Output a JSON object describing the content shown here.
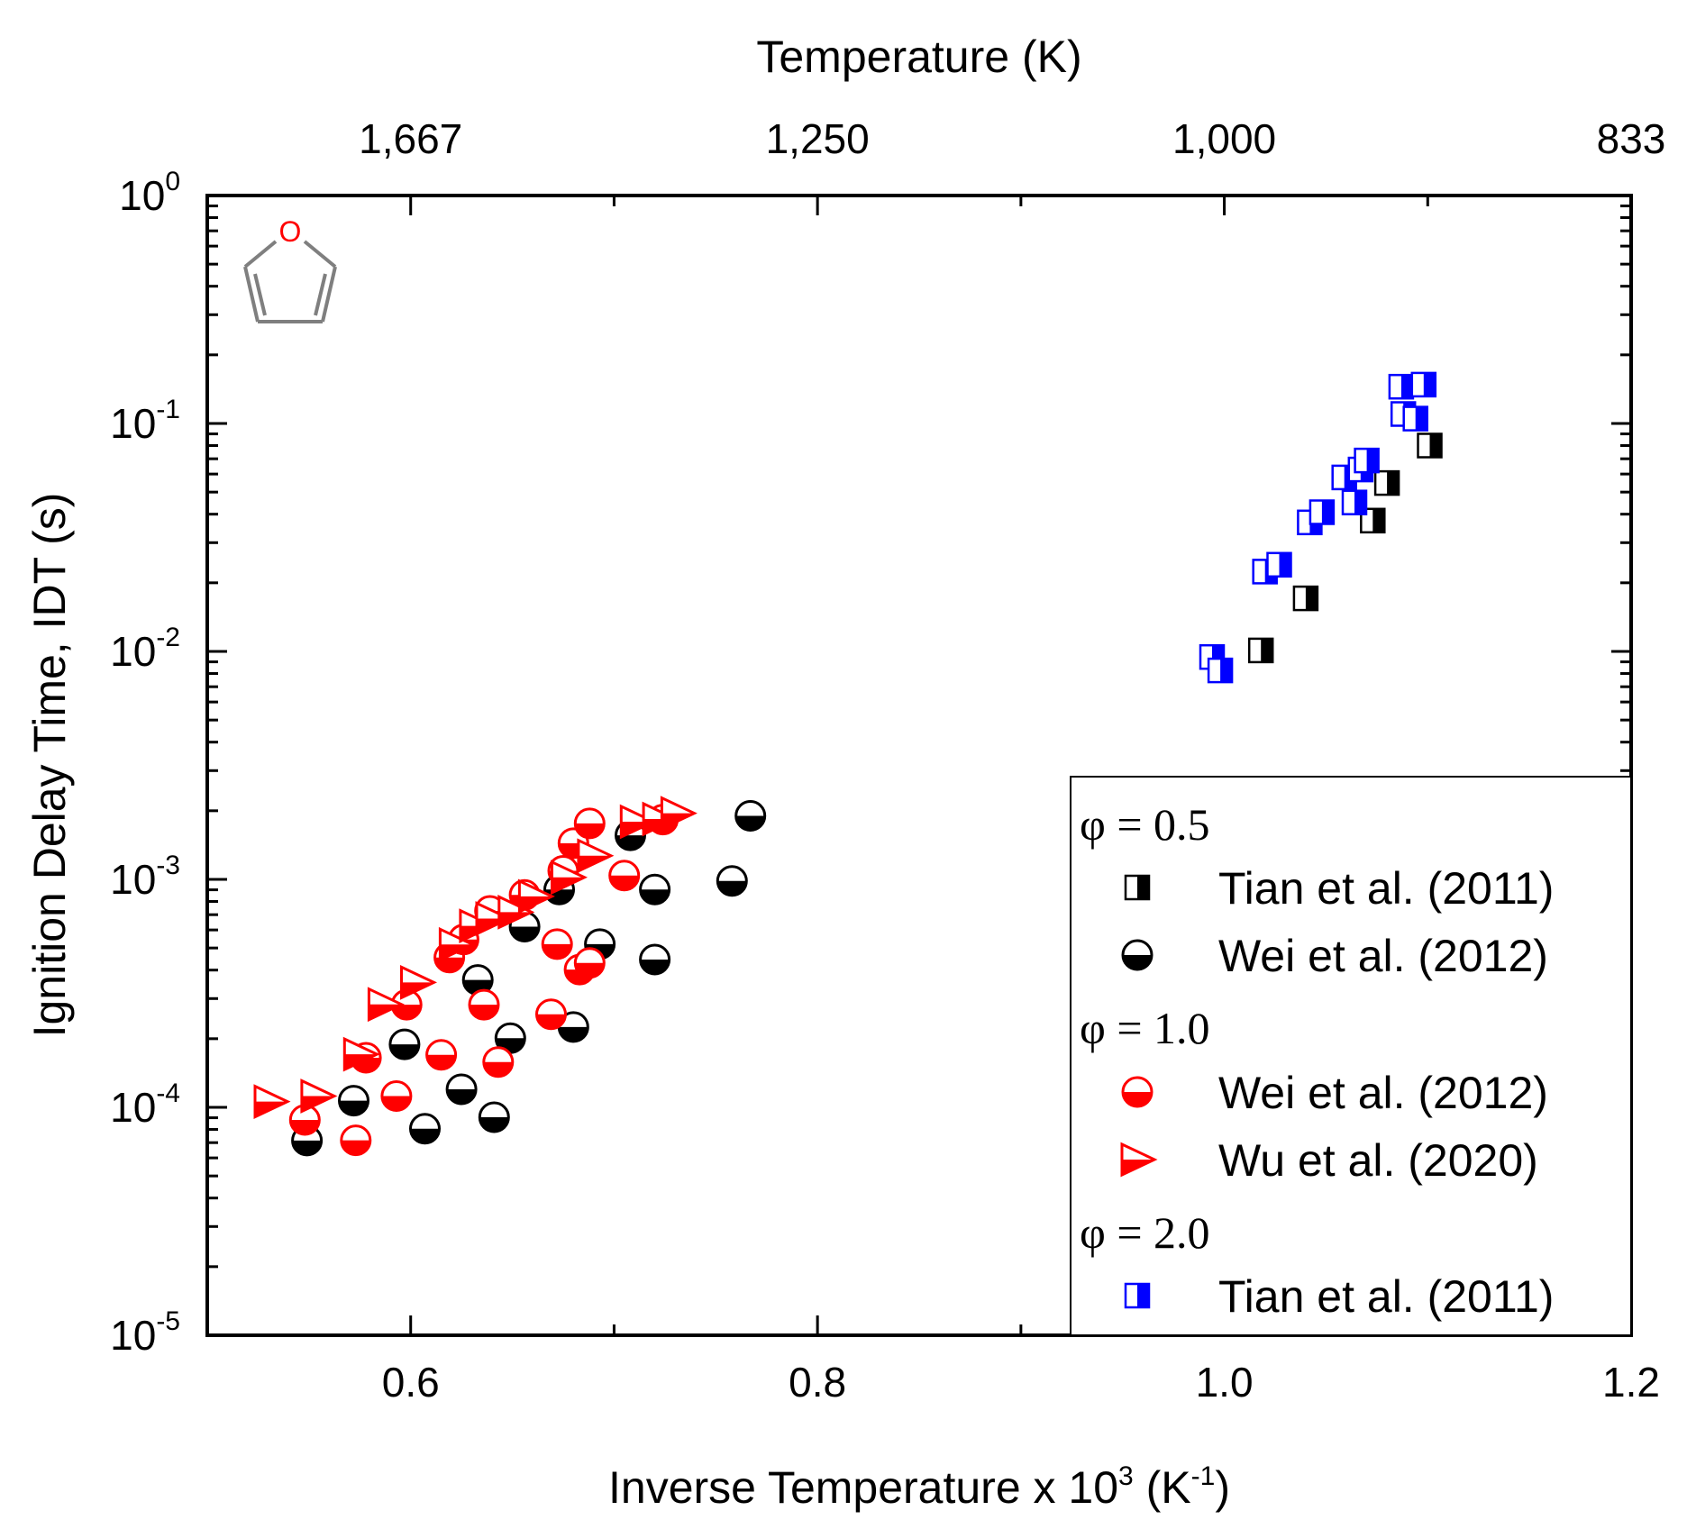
{
  "chart_data": {
    "type": "scatter",
    "x_axis": {
      "label": "Inverse Temperature x 10",
      "label_sup": "3",
      "label_unit_open": " (K",
      "label_unit_sup": "-1",
      "label_unit_close": ")",
      "range": [
        0.5,
        1.2
      ],
      "ticks": [
        0.6,
        0.8,
        1.0,
        1.2
      ],
      "tick_labels": [
        "0.6",
        "0.8",
        "1.0",
        "1.2"
      ]
    },
    "x_top_axis": {
      "label": "Temperature (K)",
      "tick_values_inverse": [
        0.6,
        0.8,
        1.0,
        1.2
      ],
      "tick_labels": [
        "1,667",
        "1,250",
        "1,000",
        "833"
      ]
    },
    "y_axis": {
      "label": "Ignition Delay Time, IDT (s)",
      "scale": "log",
      "range": [
        1e-05,
        1
      ],
      "ticks": [
        {
          "value": 1e-05,
          "base": "10",
          "exp": "-5"
        },
        {
          "value": 0.0001,
          "base": "10",
          "exp": "-4"
        },
        {
          "value": 0.001,
          "base": "10",
          "exp": "-3"
        },
        {
          "value": 0.01,
          "base": "10",
          "exp": "-2"
        },
        {
          "value": 0.1,
          "base": "10",
          "exp": "-1"
        },
        {
          "value": 1,
          "base": "10",
          "exp": "0"
        }
      ]
    },
    "annotation": {
      "molecule": "furan",
      "atom_label": "O"
    },
    "legend": {
      "position": "bottom-right",
      "groups": [
        {
          "heading": "φ = 0.5",
          "items": [
            {
              "label": "Tian et al. (2011)",
              "series": "tian_05"
            },
            {
              "label": "Wei et al. (2012)",
              "series": "wei_05"
            }
          ]
        },
        {
          "heading": "φ = 1.0",
          "items": [
            {
              "label": "Wei et al. (2012)",
              "series": "wei_10"
            },
            {
              "label": "Wu et al. (2020)",
              "series": "wu_10"
            }
          ]
        },
        {
          "heading": "φ = 2.0",
          "items": [
            {
              "label": "Tian et al. (2011)",
              "series": "tian_20"
            }
          ]
        }
      ]
    },
    "series": [
      {
        "id": "tian_05",
        "name": "Tian et al. (2011)",
        "phi": "0.5",
        "marker": "square-half-right",
        "color": "#000000",
        "points": [
          [
            1.018,
            0.0101
          ],
          [
            1.04,
            0.0171
          ],
          [
            1.073,
            0.0375
          ],
          [
            1.08,
            0.0548
          ],
          [
            1.101,
            0.08
          ]
        ]
      },
      {
        "id": "wei_05",
        "name": "Wei et al. (2012)",
        "phi": "0.5",
        "marker": "circle-half-bottom",
        "color": "#000000",
        "points": [
          [
            0.549,
            7.15e-05
          ],
          [
            0.572,
            0.000107
          ],
          [
            0.597,
            0.000189
          ],
          [
            0.607,
            8.05e-05
          ],
          [
            0.625,
            0.00012
          ],
          [
            0.633,
            0.000362
          ],
          [
            0.641,
            9.05e-05
          ],
          [
            0.649,
            0.000201
          ],
          [
            0.656,
            0.00062
          ],
          [
            0.673,
            0.000902
          ],
          [
            0.68,
            0.000225
          ],
          [
            0.693,
            0.00052
          ],
          [
            0.708,
            0.00156
          ],
          [
            0.72,
            0.000902
          ],
          [
            0.72,
            0.000445
          ],
          [
            0.758,
            0.000985
          ],
          [
            0.767,
            0.0019
          ]
        ]
      },
      {
        "id": "wei_10",
        "name": "Wei et al. (2012)",
        "phi": "1.0",
        "marker": "circle-half-bottom",
        "color": "#ff0000",
        "points": [
          [
            0.548,
            8.8e-05
          ],
          [
            0.573,
            7.17e-05
          ],
          [
            0.578,
            0.000165
          ],
          [
            0.593,
            0.000112
          ],
          [
            0.598,
            0.000282
          ],
          [
            0.615,
            0.00017
          ],
          [
            0.619,
            0.000454
          ],
          [
            0.626,
            0.000545
          ],
          [
            0.636,
            0.000282
          ],
          [
            0.639,
            0.000727
          ],
          [
            0.643,
            0.000158
          ],
          [
            0.656,
            0.000855
          ],
          [
            0.669,
            0.000256
          ],
          [
            0.672,
            0.00052
          ],
          [
            0.675,
            0.00109
          ],
          [
            0.68,
            0.00144
          ],
          [
            0.683,
            0.000402
          ],
          [
            0.688,
            0.00043
          ],
          [
            0.688,
            0.00176
          ],
          [
            0.705,
            0.00104
          ],
          [
            0.724,
            0.00183
          ]
        ]
      },
      {
        "id": "wu_10",
        "name": "Wu et al. (2020)",
        "phi": "1.0",
        "marker": "triangle-right",
        "color": "#ff0000",
        "points": [
          [
            0.531,
            0.000106
          ],
          [
            0.554,
            0.000112
          ],
          [
            0.575,
            0.000171
          ],
          [
            0.587,
            0.000283
          ],
          [
            0.603,
            0.000353
          ],
          [
            0.622,
            0.000518
          ],
          [
            0.632,
            0.000625
          ],
          [
            0.64,
            0.000673
          ],
          [
            0.651,
            0.000718
          ],
          [
            0.661,
            0.000842
          ],
          [
            0.677,
            0.00102
          ],
          [
            0.69,
            0.00127
          ],
          [
            0.711,
            0.00179
          ],
          [
            0.722,
            0.00184
          ],
          [
            0.731,
            0.00195
          ]
        ]
      },
      {
        "id": "tian_20",
        "name": "Tian et al. (2011)",
        "phi": "2.0",
        "marker": "square-half-right",
        "color": "#0000ff",
        "points": [
          [
            0.994,
            0.00945
          ],
          [
            0.998,
            0.00825
          ],
          [
            1.02,
            0.0224
          ],
          [
            1.027,
            0.024
          ],
          [
            1.042,
            0.0368
          ],
          [
            1.048,
            0.0408
          ],
          [
            1.059,
            0.058
          ],
          [
            1.064,
            0.045
          ],
          [
            1.067,
            0.0628
          ],
          [
            1.07,
            0.0688
          ],
          [
            1.087,
            0.145
          ],
          [
            1.088,
            0.11
          ],
          [
            1.094,
            0.105
          ],
          [
            1.098,
            0.148
          ]
        ]
      }
    ]
  }
}
